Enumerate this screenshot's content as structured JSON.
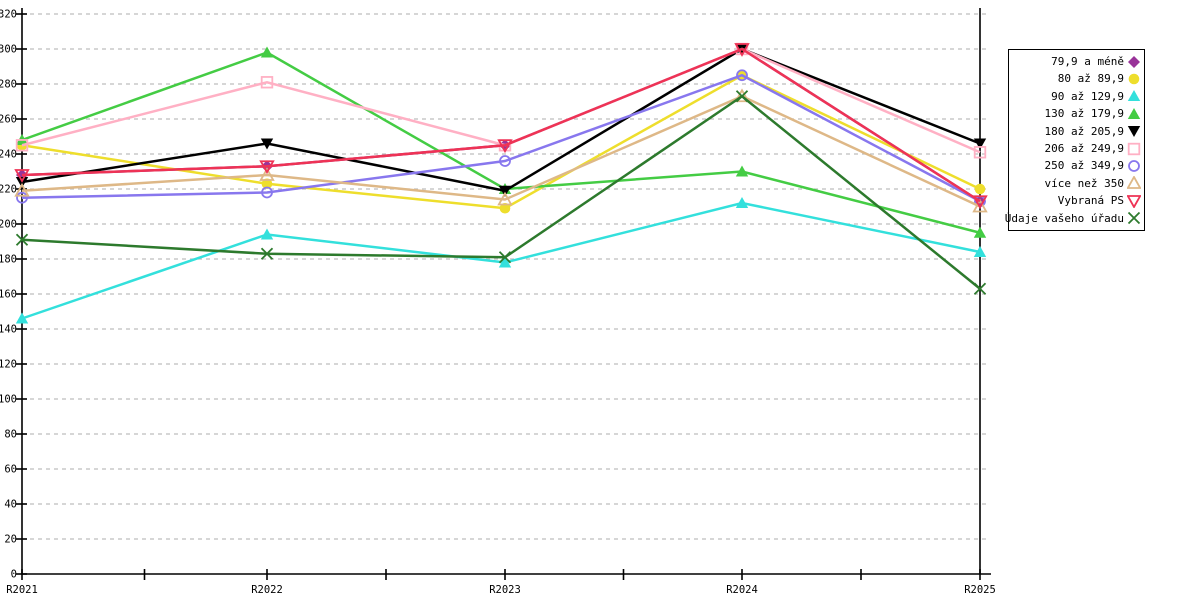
{
  "chart_data": {
    "type": "line",
    "title": "",
    "xlabel": "",
    "ylabel": "",
    "categories": [
      "R2021",
      "R2022",
      "R2023",
      "R2024",
      "R2025"
    ],
    "ylim": [
      0,
      320
    ],
    "ytick_step": 20,
    "grid": true,
    "grid_style": "dashed",
    "legend_position": "right-outside",
    "axis_color": "#000000",
    "grid_color": "#bdbdbd",
    "series": [
      {
        "name": "79,9 a méně",
        "slug": "79-9-a-mene",
        "color": "#993399",
        "marker": "diamond-filled",
        "values": [
          228,
          233,
          245,
          300,
          213
        ]
      },
      {
        "name": "80 až 89,9",
        "slug": "80-az-89-9",
        "color": "#EEDE2C",
        "marker": "circle-filled",
        "values": [
          245,
          223,
          209,
          285,
          220
        ]
      },
      {
        "name": "90 až 129,9",
        "slug": "90-az-129-9",
        "color": "#33E0DC",
        "marker": "triangle-up-filled",
        "values": [
          146,
          194,
          178,
          212,
          184
        ]
      },
      {
        "name": "130 až 179,9",
        "slug": "130-az-179-9",
        "color": "#44CC44",
        "marker": "triangle-up-filled",
        "values": [
          248,
          298,
          220,
          230,
          195
        ]
      },
      {
        "name": "180 až 205,9",
        "slug": "180-az-205-9",
        "color": "#000000",
        "marker": "triangle-down-filled",
        "values": [
          224,
          246,
          219,
          300,
          246
        ]
      },
      {
        "name": "206 až 249,9",
        "slug": "206-az-249-9",
        "color": "#FFB0C4",
        "marker": "square-open",
        "values": [
          245,
          281,
          245,
          300,
          241
        ]
      },
      {
        "name": "250 až 349,9",
        "slug": "250-az-349-9",
        "color": "#8877EE",
        "marker": "circle-open",
        "values": [
          215,
          218,
          236,
          285,
          213
        ]
      },
      {
        "name": "více než 350",
        "slug": "vice-nez-350",
        "color": "#DEB887",
        "marker": "triangle-up-open",
        "values": [
          219,
          228,
          214,
          273,
          210
        ]
      },
      {
        "name": "Vybraná PS",
        "slug": "vybrana-ps",
        "color": "#EE3355",
        "marker": "triangle-down-open",
        "values": [
          228,
          233,
          245,
          300,
          213
        ]
      },
      {
        "name": "Údaje vašeho úřadu",
        "slug": "udaje-vaseho-uradu",
        "color": "#2D7A2D",
        "marker": "x-cross",
        "values": [
          191,
          183,
          181,
          273,
          163
        ]
      }
    ]
  }
}
